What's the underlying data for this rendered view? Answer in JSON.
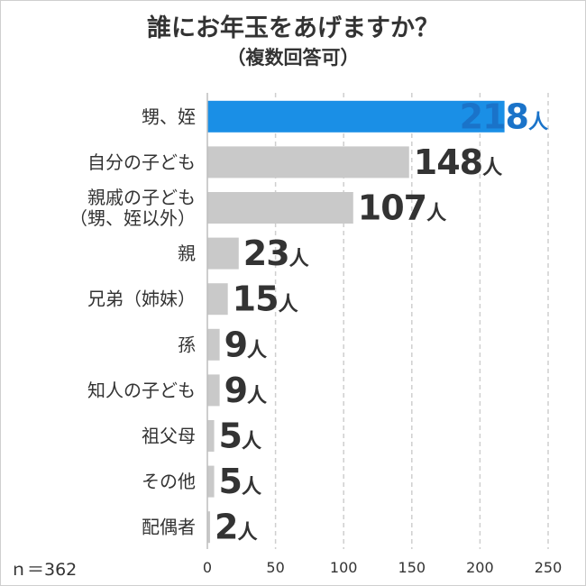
{
  "title": "誰にお年玉をあげますか？",
  "subtitle": "（複数回答可）",
  "note": "ｎ＝362",
  "chart_data": {
    "type": "bar",
    "orientation": "horizontal",
    "categories": [
      [
        "甥、姪"
      ],
      [
        "自分の子ども"
      ],
      [
        "親戚の子ども",
        "（甥、姪以外）"
      ],
      [
        "親"
      ],
      [
        "兄弟（姉妹）"
      ],
      [
        "孫"
      ],
      [
        "知人の子ども"
      ],
      [
        "祖父母"
      ],
      [
        "その他"
      ],
      [
        "配偶者"
      ]
    ],
    "values": [
      218,
      148,
      107,
      23,
      15,
      9,
      9,
      5,
      5,
      2
    ],
    "unit": "人",
    "xlim": [
      0,
      250
    ],
    "xticks": [
      0,
      50,
      100,
      150,
      200,
      250
    ],
    "grid": true,
    "highlight_index": 0,
    "colors": {
      "highlight": "#1a8fe6",
      "highlight_text": "#1a73c9",
      "bar": "#c9c9c9",
      "text": "#333333",
      "grid": "#cfcfcf"
    }
  }
}
